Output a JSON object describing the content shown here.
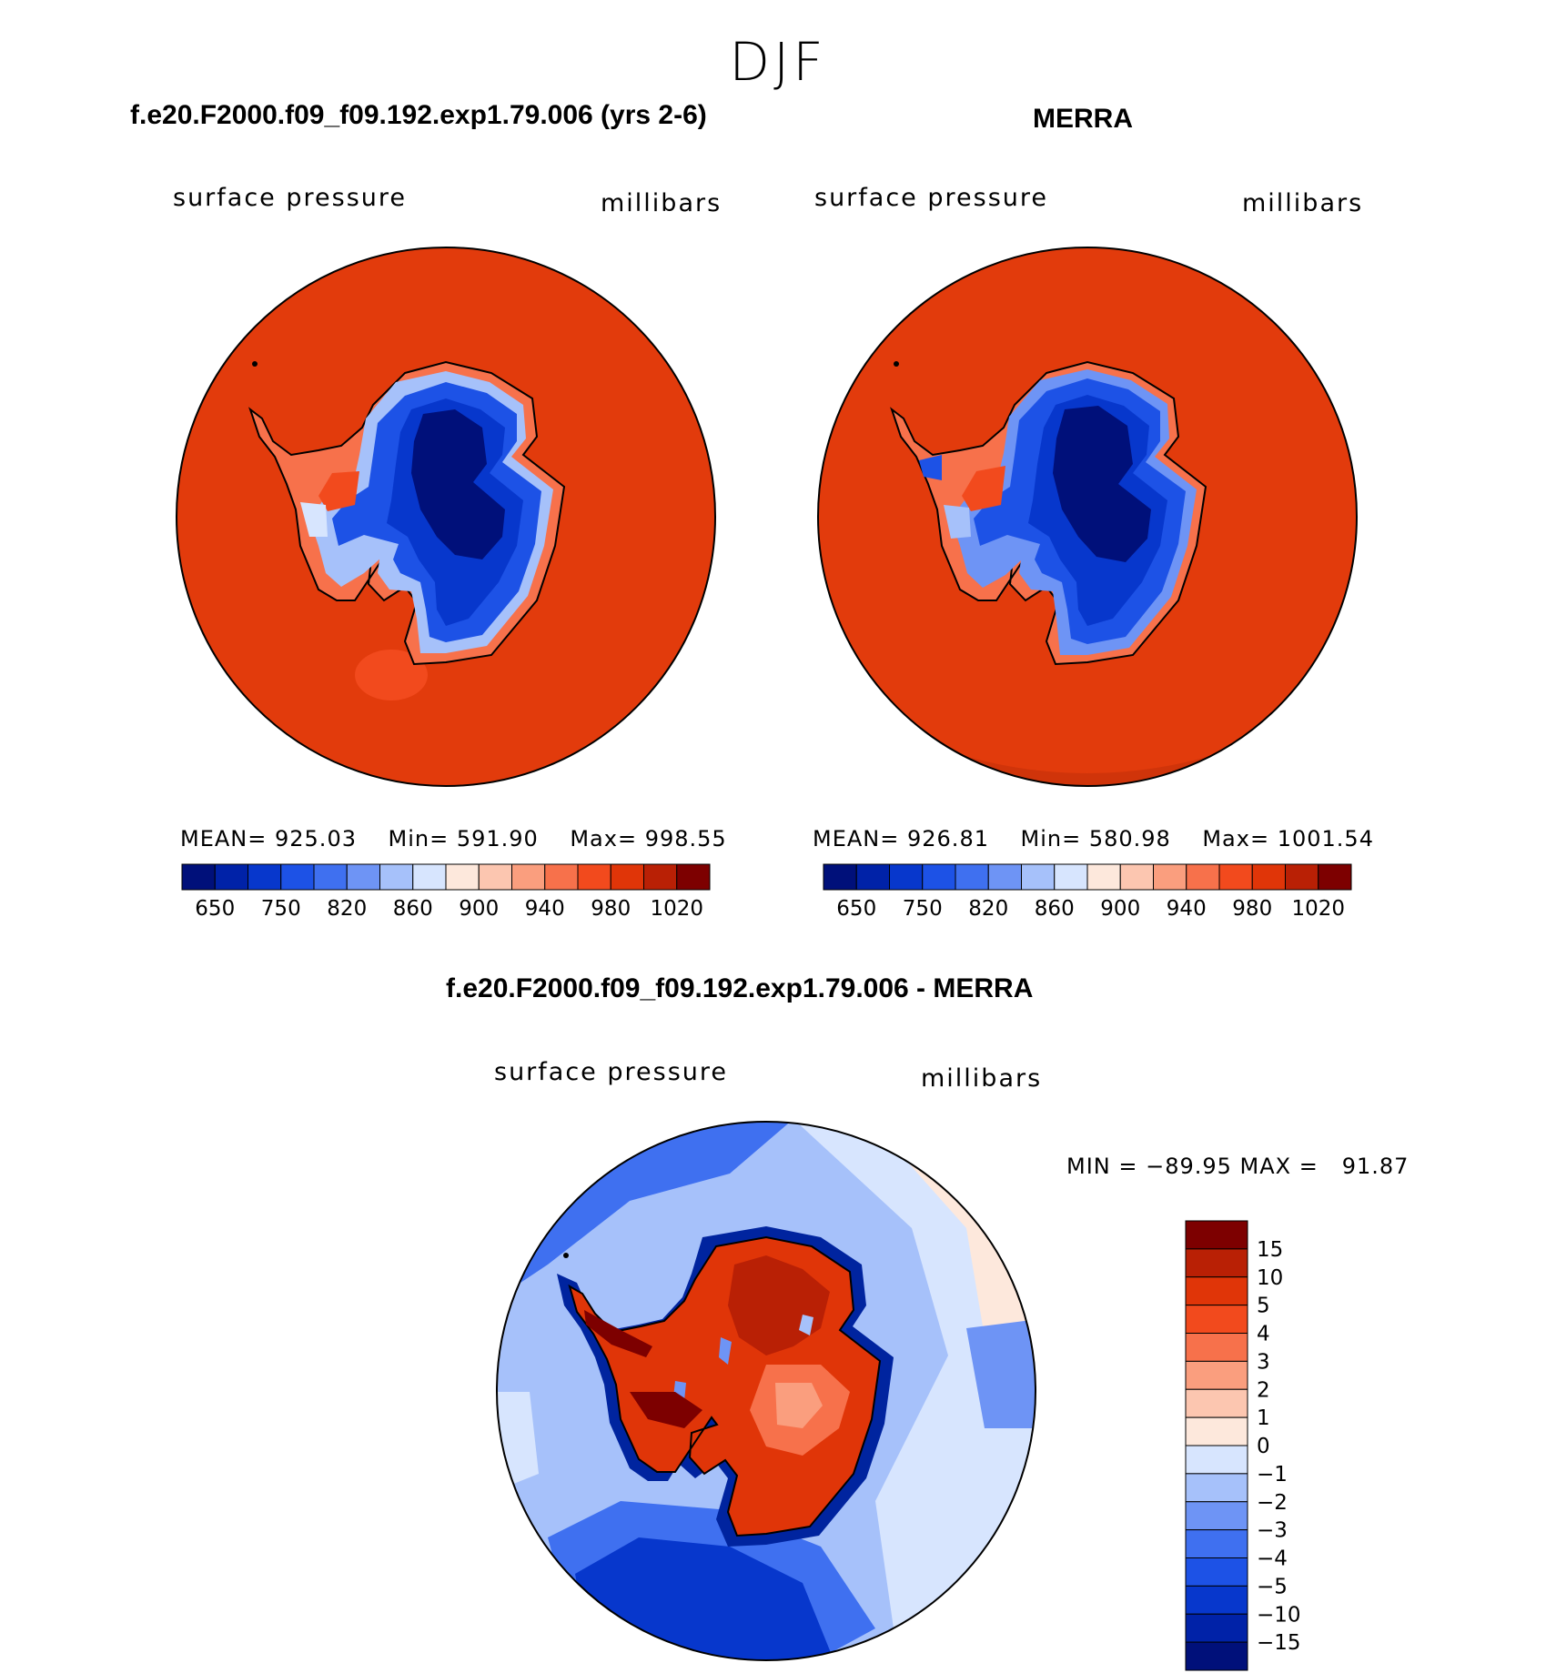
{
  "figure": {
    "season": "DJF"
  },
  "colors": {
    "ocean_red": "#e23b0c",
    "land_low_blue": "#00249f",
    "mid_blue": "#1f4fd6",
    "light_blue": "#7aa6f5",
    "pale_blue": "#dce8ff",
    "diff_dark_red": "#b31d00",
    "coast_line": "#000000"
  },
  "chart_data": [
    {
      "id": "model",
      "type": "heatmap",
      "title": "f.e20.F2000.f09_f09.192.exp1.79.006 (yrs 2-6)",
      "left_label": "surface pressure",
      "right_label": "millibars",
      "stats": {
        "mean_label": "MEAN=",
        "mean": "925.03",
        "min_label": "Min=",
        "min": "591.90",
        "max_label": "Max=",
        "max": "998.55"
      },
      "colorbar": {
        "orientation": "horizontal",
        "colors": [
          "#00107a",
          "#0022a8",
          "#0737cc",
          "#1d52e6",
          "#3f70f0",
          "#6e94f5",
          "#a6c1fa",
          "#d7e5fe",
          "#fde8dc",
          "#fcc6b0",
          "#fa9e7e",
          "#f7714b",
          "#f24a1d",
          "#e03508",
          "#b92005",
          "#7d0000"
        ],
        "tick_labels": [
          "650",
          "750",
          "820",
          "860",
          "900",
          "940",
          "980",
          "1020"
        ]
      }
    },
    {
      "id": "obs",
      "type": "heatmap",
      "title": "MERRA",
      "left_label": "surface pressure",
      "right_label": "millibars",
      "stats": {
        "mean_label": "MEAN=",
        "mean": "926.81",
        "min_label": "Min=",
        "min": "580.98",
        "max_label": "Max=",
        "max": "1001.54"
      },
      "colorbar": {
        "orientation": "horizontal",
        "colors": [
          "#00107a",
          "#0022a8",
          "#0737cc",
          "#1d52e6",
          "#3f70f0",
          "#6e94f5",
          "#a6c1fa",
          "#d7e5fe",
          "#fde8dc",
          "#fcc6b0",
          "#fa9e7e",
          "#f7714b",
          "#f24a1d",
          "#e03508",
          "#b92005",
          "#7d0000"
        ],
        "tick_labels": [
          "650",
          "750",
          "820",
          "860",
          "900",
          "940",
          "980",
          "1020"
        ]
      }
    },
    {
      "id": "diff",
      "type": "heatmap",
      "title": "f.e20.F2000.f09_f09.192.exp1.79.006 - MERRA",
      "left_label": "surface pressure",
      "right_label": "millibars",
      "stats_text": "MIN = −89.95 MAX =   91.87",
      "colorbar": {
        "orientation": "vertical",
        "colors_top_to_bottom": [
          "#7d0000",
          "#b92005",
          "#e03508",
          "#f24a1d",
          "#f7714b",
          "#fa9e7e",
          "#fcc6b0",
          "#fde8dc",
          "#d7e5fe",
          "#a6c1fa",
          "#6e94f5",
          "#3f70f0",
          "#1d52e6",
          "#0737cc",
          "#0022a8",
          "#00107a"
        ],
        "tick_labels": [
          "15",
          "10",
          "5",
          "4",
          "3",
          "2",
          "1",
          "0",
          "−1",
          "−2",
          "−3",
          "−4",
          "−5",
          "−10",
          "−15"
        ]
      }
    }
  ]
}
